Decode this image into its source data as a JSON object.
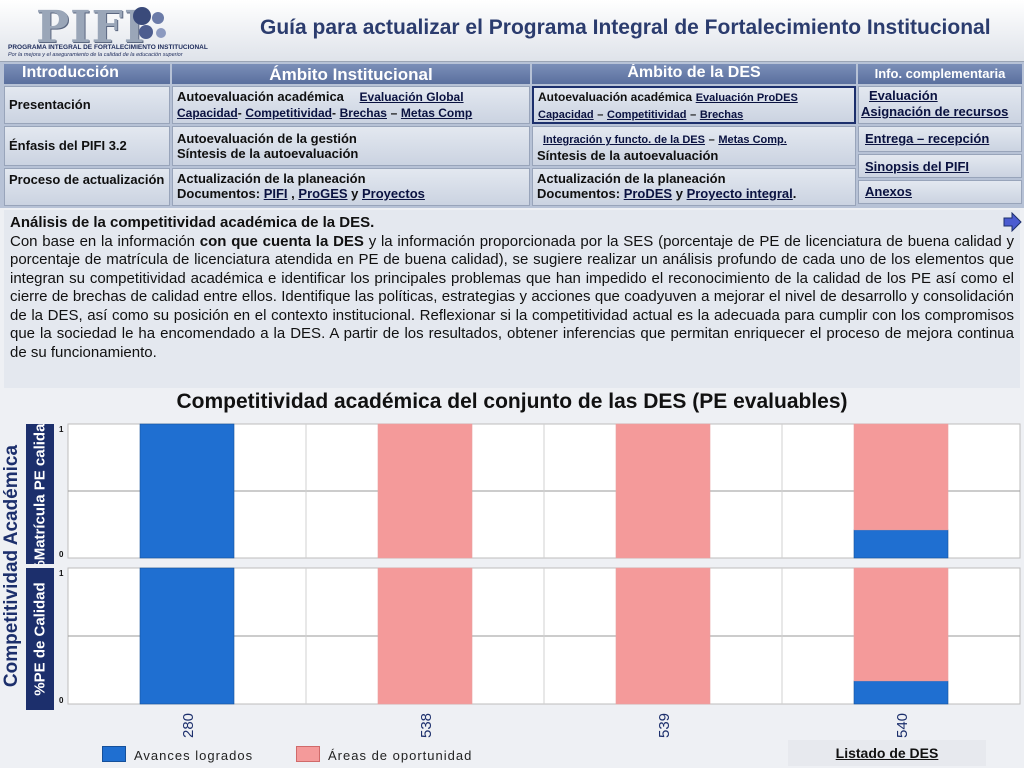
{
  "header": {
    "logo_word": "PIFI",
    "logo_line1": "PROGRAMA INTEGRAL DE FORTALECIMIENTO INSTITUCIONAL",
    "logo_line2": "Por la mejora y el aseguramiento de la calidad de la educación superior",
    "title": "Guía para actualizar el Programa Integral de Fortalecimiento Institucional"
  },
  "nav": {
    "headers": {
      "intro": "Introducción",
      "institucional": "Ámbito Institucional",
      "des": "Ámbito de la DES",
      "info": "Info. complementaria"
    },
    "intro": [
      "Presentación",
      "Énfasis del PIFI 3.2",
      "Proceso de actualización"
    ],
    "institucional": {
      "row1_label": "Autoevaluación académica",
      "row1_link": "Evaluación Global",
      "row1_sub": [
        "Capacidad",
        "-",
        "Competitividad",
        "-",
        "Brechas",
        "–",
        "Metas Comp"
      ],
      "row2_line1": "Autoevaluación de la gestión",
      "row2_line2": "Síntesis de la autoevaluación",
      "row3_line1": "Actualización de la planeación",
      "row3_prefix": "Documentos:",
      "row3_links": [
        "PIFI",
        "ProGES",
        "Proyectos"
      ],
      "row3_sep1": ",",
      "row3_sep2": "y"
    },
    "des": {
      "row1_label": "Autoevaluación académica",
      "row1_link": "Evaluación ProDES",
      "row1_sub": [
        "Capacidad",
        "–",
        "Competitividad",
        "–",
        "Brechas"
      ],
      "row2_line1_links": [
        "Integración y functo. de la DES",
        "Metas Comp."
      ],
      "row2_line1_sep": "–",
      "row2_line2": "Síntesis de la autoevaluación",
      "row3_line1": "Actualización de la planeación",
      "row3_prefix": "Documentos:",
      "row3_links": [
        "ProDES",
        "Proyecto integral"
      ],
      "row3_sep": "y",
      "row3_end": "."
    },
    "info": [
      "Evaluación",
      "Asignación de recursos",
      "Entrega – recepción",
      "Sinopsis del PIFI",
      "Anexos"
    ]
  },
  "content": {
    "title": "Análisis de la competitividad académica de la DES.",
    "p_start": "Con base en la información ",
    "p_bold": "con que cuenta la DES",
    "p_rest": " y la información proporcionada por la SES (porcentaje de PE de licenciatura de buena calidad y porcentaje de matrícula de licenciatura atendida en PE de buena calidad), se sugiere realizar un análisis profundo de cada uno de los elementos que integran su competitividad académica e identificar los principales problemas que han impedido el reconocimiento de la calidad de los PE así como el cierre de brechas de calidad entre ellos. Identifique las políticas, estrategias y acciones que coadyuven a mejorar el nivel de desarrollo y consolidación de la DES, así como su posición en el contexto institucional. Reflexionar si la competitividad actual es la adecuada para cumplir con los compromisos que la sociedad le ha encomendado a la DES. A partir de los resultados, obtener inferencias que permitan enriquecer el proceso de mejora continua de su funcionamiento."
  },
  "chart_data": {
    "type": "bar",
    "title": "Competitividad académica del conjunto de las DES (PE evaluables)",
    "ylabel": "Competitividad Académica",
    "categories": [
      "280",
      "538",
      "539",
      "540"
    ],
    "panels": [
      {
        "name": "%Matrícula PE calidad",
        "ylim": [
          0,
          1
        ],
        "ticks": [
          "1",
          "0"
        ],
        "series": [
          {
            "name": "Avances logrados",
            "values": [
              1,
              0,
              0,
              0.21
            ]
          },
          {
            "name": "Áreas de oportunidad",
            "values": [
              0,
              1,
              1,
              0.79
            ]
          }
        ]
      },
      {
        "name": "%PE de Calidad",
        "ylim": [
          0,
          1
        ],
        "ticks": [
          "1",
          "0"
        ],
        "series": [
          {
            "name": "Avances logrados",
            "values": [
              1,
              0,
              0,
              0.17
            ]
          },
          {
            "name": "Áreas de oportunidad",
            "values": [
              0,
              1,
              1,
              0.83
            ]
          }
        ]
      }
    ],
    "stacked": true,
    "legend_position": "bottom",
    "colors": {
      "avances": "#1f6fd1",
      "oportunidad": "#f49a9a"
    }
  },
  "legend": [
    "Avances logrados",
    "Áreas de oportunidad"
  ],
  "footer": {
    "listado": "Listado de DES"
  }
}
